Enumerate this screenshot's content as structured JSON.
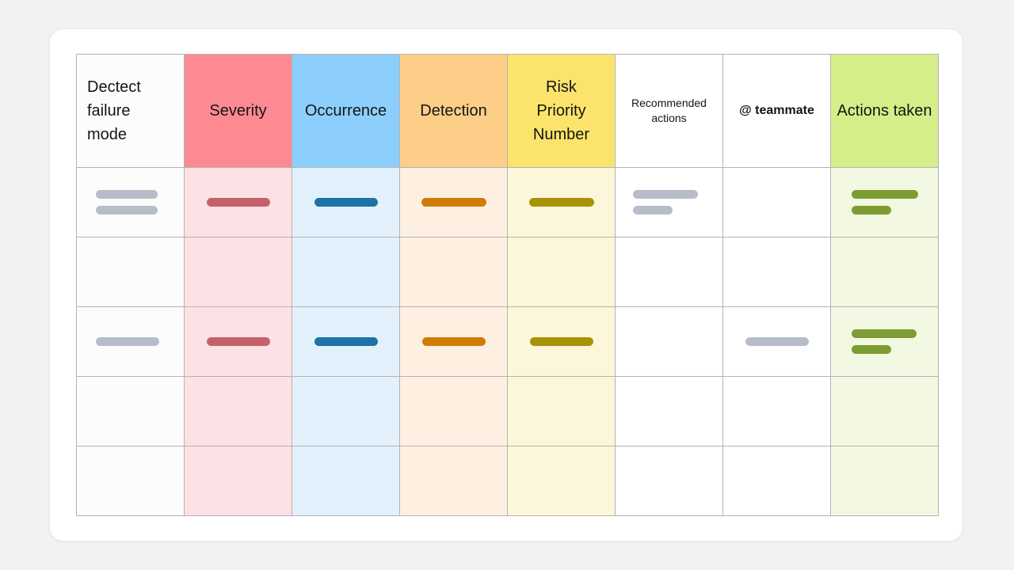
{
  "table": {
    "columns": [
      {
        "label": "Dectect failure mode"
      },
      {
        "label": "Severity"
      },
      {
        "label": "Occurrence"
      },
      {
        "label": "Detection"
      },
      {
        "label": "Risk Priority Number"
      },
      {
        "label": "Recommended actions"
      },
      {
        "label": "@ teammate"
      },
      {
        "label": "Actions taken"
      }
    ],
    "body_row_count": 5,
    "placeholder_rows": [
      {
        "row": 1,
        "pills": {
          "failure_mode": 2,
          "severity": 1,
          "occurrence": 1,
          "detection": 1,
          "risk_priority_number": 1,
          "recommended_actions": 2,
          "teammate": 0,
          "actions_taken": 2
        }
      },
      {
        "row": 3,
        "pills": {
          "failure_mode": 1,
          "severity": 1,
          "occurrence": 1,
          "detection": 1,
          "risk_priority_number": 1,
          "recommended_actions": 0,
          "teammate": 1,
          "actions_taken": 2
        }
      }
    ]
  },
  "colors": {
    "page_bg": "#F1F2F4",
    "card_bg": "#FFFFFF",
    "card_border": "#E9EAEC",
    "grid_line": "#B3B3B3",
    "text": "#151515",
    "failure_header_bg": "#FCFCFC",
    "failure_body_bg": "#FCFCFC",
    "severity_header_bg": "#FD8A92",
    "severity_body_bg": "#FCE2E5",
    "occurrence_header_bg": "#8DCFFC",
    "occurrence_body_bg": "#E2F1FC",
    "detection_header_bg": "#FDCE88",
    "detection_body_bg": "#FDF0E1",
    "rpn_header_bg": "#FCE46C",
    "rpn_body_bg": "#FCF7DA",
    "recommended_header_bg": "#FFFFFF",
    "recommended_body_bg": "#FFFFFF",
    "teammate_header_bg": "#FFFFFF",
    "teammate_body_bg": "#FFFFFF",
    "actions_header_bg": "#D5EE89",
    "actions_body_bg": "#F3F8E2",
    "pill_gray": "#B7BDC8",
    "pill_rose": "#C4626C",
    "pill_blue": "#1F72A8",
    "pill_orange": "#D07C04",
    "pill_olive": "#A89207",
    "pill_green": "#7D9C31"
  }
}
